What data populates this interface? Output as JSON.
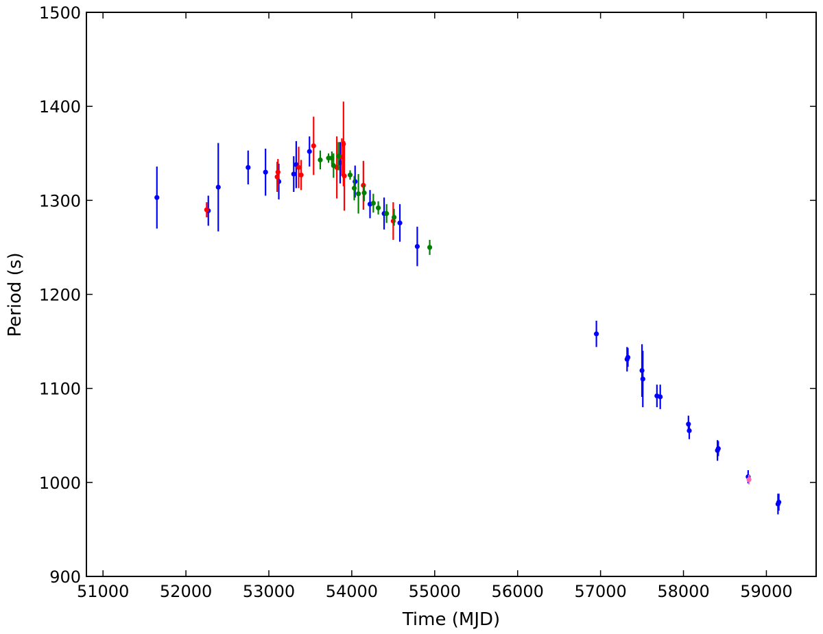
{
  "chart_data": {
    "type": "scatter",
    "title": "",
    "xlabel": "Time (MJD)",
    "ylabel": "Period (s)",
    "xlim": [
      50800,
      59600
    ],
    "ylim": [
      900,
      1500
    ],
    "xticks": [
      51000,
      52000,
      53000,
      54000,
      55000,
      56000,
      57000,
      58000,
      59000
    ],
    "yticks": [
      900,
      1000,
      1100,
      1200,
      1300,
      1400,
      1500
    ],
    "grid": false,
    "legend": "none",
    "series": [
      {
        "color": "#0000ff",
        "points": [
          {
            "x": 51650,
            "y": 1303,
            "err": 33
          },
          {
            "x": 52270,
            "y": 1289,
            "err": 16
          },
          {
            "x": 52390,
            "y": 1314,
            "err": 47
          },
          {
            "x": 52750,
            "y": 1335,
            "err": 18
          },
          {
            "x": 52960,
            "y": 1330,
            "err": 25
          },
          {
            "x": 53120,
            "y": 1320,
            "err": 19
          },
          {
            "x": 53300,
            "y": 1328,
            "err": 19
          },
          {
            "x": 53330,
            "y": 1338,
            "err": 25
          },
          {
            "x": 53490,
            "y": 1352,
            "err": 16
          },
          {
            "x": 53860,
            "y": 1340,
            "err": 22
          },
          {
            "x": 54040,
            "y": 1320,
            "err": 17
          },
          {
            "x": 54220,
            "y": 1296,
            "err": 15
          },
          {
            "x": 54390,
            "y": 1286,
            "err": 17
          },
          {
            "x": 54580,
            "y": 1276,
            "err": 20
          },
          {
            "x": 54790,
            "y": 1251,
            "err": 21
          },
          {
            "x": 56950,
            "y": 1158,
            "err": 14
          },
          {
            "x": 57320,
            "y": 1131,
            "err": 13
          },
          {
            "x": 57330,
            "y": 1133,
            "err": 10
          },
          {
            "x": 57500,
            "y": 1119,
            "err": 28
          },
          {
            "x": 57510,
            "y": 1110,
            "err": 30
          },
          {
            "x": 57680,
            "y": 1092,
            "err": 12
          },
          {
            "x": 57720,
            "y": 1091,
            "err": 13
          },
          {
            "x": 58060,
            "y": 1062,
            "err": 9
          },
          {
            "x": 58070,
            "y": 1055,
            "err": 9
          },
          {
            "x": 58410,
            "y": 1034,
            "err": 11
          },
          {
            "x": 58420,
            "y": 1036,
            "err": 8
          },
          {
            "x": 58780,
            "y": 1006,
            "err": 7
          },
          {
            "x": 59140,
            "y": 977,
            "err": 11
          },
          {
            "x": 59150,
            "y": 979,
            "err": 9
          }
        ]
      },
      {
        "color": "#ff0000",
        "points": [
          {
            "x": 52250,
            "y": 1290,
            "err": 8
          },
          {
            "x": 53100,
            "y": 1325,
            "err": 16
          },
          {
            "x": 53110,
            "y": 1330,
            "err": 14
          },
          {
            "x": 53360,
            "y": 1335,
            "err": 22
          },
          {
            "x": 53390,
            "y": 1327,
            "err": 16
          },
          {
            "x": 53540,
            "y": 1358,
            "err": 31
          },
          {
            "x": 53820,
            "y": 1335,
            "err": 33
          },
          {
            "x": 53880,
            "y": 1346,
            "err": 20
          },
          {
            "x": 53900,
            "y": 1360,
            "err": 45
          },
          {
            "x": 53910,
            "y": 1326,
            "err": 37
          },
          {
            "x": 54140,
            "y": 1316,
            "err": 26
          },
          {
            "x": 54500,
            "y": 1278,
            "err": 20
          }
        ]
      },
      {
        "color": "#008000",
        "points": [
          {
            "x": 53620,
            "y": 1343,
            "err": 10
          },
          {
            "x": 53720,
            "y": 1345,
            "err": 5
          },
          {
            "x": 53760,
            "y": 1345,
            "err": 7
          },
          {
            "x": 53780,
            "y": 1337,
            "err": 13
          },
          {
            "x": 53840,
            "y": 1347,
            "err": 15
          },
          {
            "x": 53980,
            "y": 1327,
            "err": 5
          },
          {
            "x": 54030,
            "y": 1313,
            "err": 13
          },
          {
            "x": 54080,
            "y": 1307,
            "err": 21
          },
          {
            "x": 54150,
            "y": 1308,
            "err": 9
          },
          {
            "x": 54260,
            "y": 1297,
            "err": 10
          },
          {
            "x": 54320,
            "y": 1292,
            "err": 7
          },
          {
            "x": 54420,
            "y": 1286,
            "err": 10
          },
          {
            "x": 54510,
            "y": 1282,
            "err": 9
          },
          {
            "x": 54940,
            "y": 1250,
            "err": 8
          }
        ]
      },
      {
        "color": "#ff69b4",
        "points": [
          {
            "x": 58790,
            "y": 1003,
            "err": 5
          }
        ]
      }
    ]
  }
}
